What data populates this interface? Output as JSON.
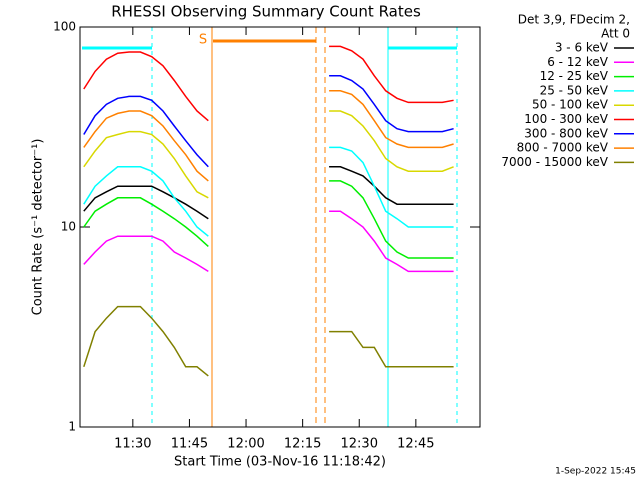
{
  "chart_data": {
    "type": "line",
    "title": "RHESSI Observing Summary Count Rates",
    "x_label": "Start Time (03-Nov-16 11:18:42)",
    "y_label": "Count Rate (s⁻¹ detector⁻¹)",
    "legend_header": [
      "Det 3,9, FDecim 2,",
      "Att 0"
    ],
    "annotation": "S",
    "footer": "1-Sep-2022 15:45",
    "y_log": true,
    "legend": "right",
    "xlim": [
      16,
      122
    ],
    "ylim": [
      1,
      100
    ],
    "xticks": [
      {
        "value": 30,
        "label": "11:30"
      },
      {
        "value": 45,
        "label": "11:45"
      },
      {
        "value": 60,
        "label": "12:00"
      },
      {
        "value": 75,
        "label": "12:15"
      },
      {
        "value": 90,
        "label": "12:30"
      },
      {
        "value": 105,
        "label": "12:45"
      }
    ],
    "yticks": [
      1,
      10,
      100
    ],
    "x": [
      17,
      20,
      23,
      26,
      29,
      32,
      35,
      38,
      41,
      44,
      47,
      50,
      66,
      82,
      85,
      88,
      91,
      94,
      97,
      100,
      103,
      106,
      109,
      112,
      115
    ],
    "series": [
      {
        "name": "3 - 6 keV",
        "color": "#000000",
        "values": [
          12,
          14,
          15,
          16,
          16,
          16,
          16,
          15,
          14,
          13,
          12,
          11,
          null,
          20,
          20,
          19,
          18,
          16,
          14,
          13,
          13,
          13,
          13,
          13,
          13
        ]
      },
      {
        "name": "6 - 12 keV",
        "color": "#ff00ff",
        "values": [
          6.5,
          7.5,
          8.5,
          9,
          9,
          9,
          9,
          8.5,
          7.5,
          7,
          6.5,
          6,
          null,
          12,
          12,
          11,
          10,
          8.5,
          7,
          6.5,
          6,
          6,
          6,
          6,
          6
        ]
      },
      {
        "name": "12 - 25 keV",
        "color": "#00ee00",
        "values": [
          10,
          12,
          13,
          14,
          14,
          14,
          13,
          12,
          11,
          10,
          9,
          8,
          null,
          17,
          17,
          16,
          14,
          11,
          8.5,
          7.5,
          7,
          7,
          7,
          7,
          7
        ]
      },
      {
        "name": "25 - 50 keV",
        "color": "#00ffff",
        "values": [
          13,
          16,
          18,
          20,
          20,
          20,
          19,
          17,
          14,
          12,
          10,
          9,
          null,
          25,
          25,
          24,
          21,
          16,
          12,
          11,
          10,
          10,
          10,
          10,
          10
        ]
      },
      {
        "name": "50 - 100 keV",
        "color": "#d8d800",
        "values": [
          20,
          24,
          28,
          29,
          30,
          30,
          29,
          26,
          22,
          18,
          15,
          14,
          null,
          38,
          38,
          36,
          32,
          27,
          22,
          20,
          19,
          19,
          19,
          19,
          20
        ]
      },
      {
        "name": "100 - 300 keV",
        "color": "#ff0000",
        "values": [
          49,
          60,
          69,
          74,
          75,
          75,
          71,
          64,
          54,
          45,
          38,
          34,
          null,
          80,
          80,
          76,
          69,
          57,
          48,
          44,
          42,
          42,
          42,
          42,
          43
        ]
      },
      {
        "name": "300 - 800 keV",
        "color": "#0000ff",
        "values": [
          29,
          36,
          41,
          44,
          45,
          45,
          43,
          38,
          32,
          27,
          23,
          20,
          null,
          57,
          57,
          54,
          49,
          41,
          34,
          31,
          30,
          30,
          30,
          30,
          31
        ]
      },
      {
        "name": "800 - 7000 keV",
        "color": "#ff8000",
        "values": [
          25,
          30,
          35,
          37,
          38,
          38,
          36,
          32,
          27,
          23,
          19,
          17,
          null,
          48,
          48,
          46,
          41,
          34,
          28,
          26,
          25,
          25,
          25,
          25,
          26
        ]
      },
      {
        "name": "7000 - 15000 keV",
        "color": "#808000",
        "values": [
          2,
          3,
          3.5,
          4,
          4,
          4,
          3.5,
          3,
          2.5,
          2,
          2,
          1.8,
          null,
          3,
          3,
          3,
          2.5,
          2.5,
          2,
          2,
          2,
          2,
          2,
          2,
          2
        ]
      }
    ]
  }
}
